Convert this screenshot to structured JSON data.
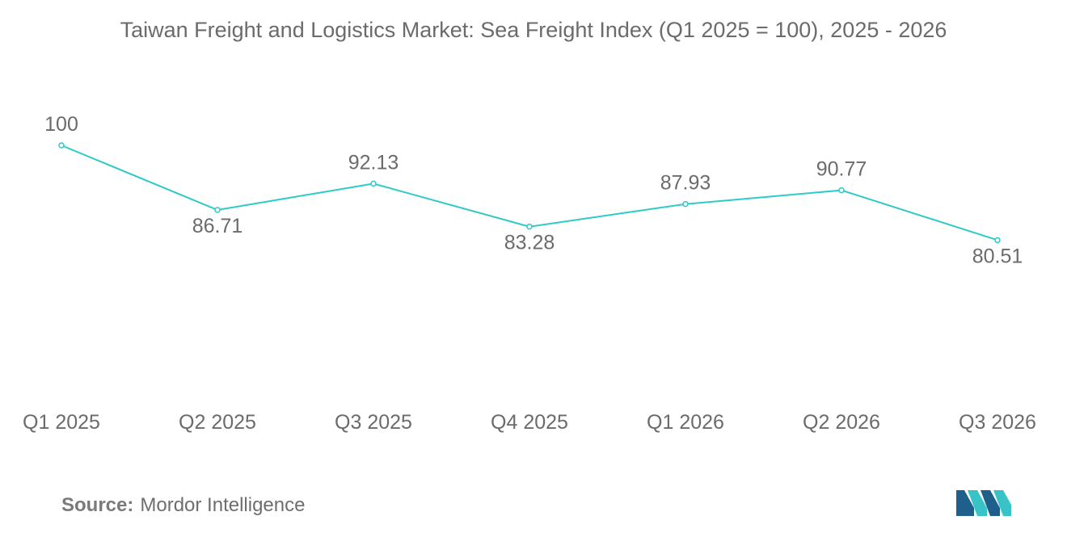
{
  "title": "Taiwan Freight and Logistics Market: Sea Freight Index (Q1 2025 = 100), 2025 - 2026",
  "source": {
    "label": "Source:",
    "text": "Mordor Intelligence"
  },
  "colors": {
    "line": "#2ec9c9",
    "text": "#6b6b6b",
    "logo_dark": "#1f5f8b",
    "logo_light": "#38c4c6"
  },
  "chart_data": {
    "type": "line",
    "title": "Taiwan Freight and Logistics Market: Sea Freight Index (Q1 2025 = 100), 2025 - 2026",
    "xlabel": "",
    "ylabel": "",
    "categories": [
      "Q1 2025",
      "Q2 2025",
      "Q3 2025",
      "Q4 2025",
      "Q1 2026",
      "Q2 2026",
      "Q3 2026"
    ],
    "series": [
      {
        "values": [
          100,
          86.71,
          92.13,
          83.28,
          87.93,
          90.77,
          80.51
        ],
        "labels": [
          "100",
          "86.71",
          "92.13",
          "83.28",
          "87.93",
          "90.77",
          "80.51"
        ],
        "label_positions": [
          "above",
          "below",
          "above",
          "below",
          "above",
          "above",
          "below"
        ]
      }
    ],
    "grid": false,
    "legend": "none",
    "y_axis_visible": false
  }
}
